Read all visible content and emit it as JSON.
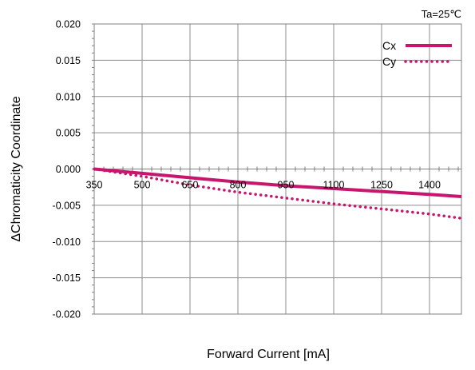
{
  "chart_data": {
    "type": "line",
    "condition": "Ta=25℃",
    "xlabel": "Forward Current [mA]",
    "ylabel": "ΔChromaticity Coordinate",
    "xlim": [
      350,
      1500
    ],
    "ylim": [
      -0.02,
      0.02
    ],
    "x_ticks": [
      "350",
      "500",
      "650",
      "800",
      "950",
      "1100",
      "1250",
      "1400"
    ],
    "y_ticks": [
      "0.020",
      "0.015",
      "0.010",
      "0.005",
      "0.000",
      "-0.005",
      "-0.010",
      "-0.015",
      "-0.020"
    ],
    "grid": true,
    "legend_position": "top-right",
    "series": [
      {
        "name": "Cx",
        "style": "solid",
        "color": "#C8166E",
        "x": [
          350,
          500,
          650,
          800,
          950,
          1100,
          1250,
          1400,
          1500
        ],
        "y": [
          0.0,
          -0.0006,
          -0.0012,
          -0.0018,
          -0.0023,
          -0.0027,
          -0.0031,
          -0.0035,
          -0.0038
        ]
      },
      {
        "name": "Cy",
        "style": "dotted",
        "color": "#C8166E",
        "x": [
          350,
          500,
          650,
          800,
          950,
          1100,
          1250,
          1400,
          1500
        ],
        "y": [
          0.0,
          -0.001,
          -0.0022,
          -0.0032,
          -0.004,
          -0.0048,
          -0.0055,
          -0.0062,
          -0.0068
        ]
      }
    ]
  }
}
